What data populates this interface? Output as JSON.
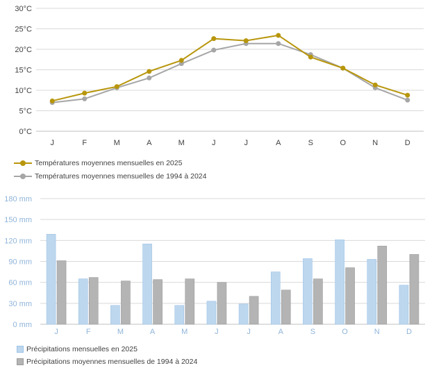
{
  "chart_data": [
    {
      "type": "line",
      "categories": [
        "J",
        "F",
        "M",
        "A",
        "M",
        "J",
        "J",
        "A",
        "S",
        "O",
        "N",
        "D"
      ],
      "ylim": [
        0,
        30
      ],
      "yticks": [
        "0°C",
        "5°C",
        "10°C",
        "15°C",
        "20°C",
        "25°C",
        "30°C"
      ],
      "ytick_values": [
        0,
        5,
        10,
        15,
        20,
        25,
        30
      ],
      "grid": true,
      "series": [
        {
          "name": "Températures moyennes mensuelles en 2025",
          "color": "#b8960c",
          "values": [
            7.4,
            9.3,
            10.9,
            14.6,
            17.3,
            22.6,
            22.1,
            23.4,
            18.1,
            15.4,
            11.3,
            8.8
          ]
        },
        {
          "name": "Températures moyennes mensuelles de 1994 à 2024",
          "color": "#a6a6a6",
          "values": [
            7.0,
            7.9,
            10.6,
            13.0,
            16.5,
            19.8,
            21.4,
            21.4,
            18.7,
            15.4,
            10.6,
            7.6
          ]
        }
      ],
      "legend_position": "bottom-left"
    },
    {
      "type": "bar",
      "categories": [
        "J",
        "F",
        "M",
        "A",
        "M",
        "J",
        "J",
        "A",
        "S",
        "O",
        "N",
        "D"
      ],
      "ylim": [
        0,
        180
      ],
      "yticks": [
        "0 mm",
        "30 mm",
        "60 mm",
        "90 mm",
        "120 mm",
        "150 mm",
        "180 mm"
      ],
      "ytick_values": [
        0,
        30,
        60,
        90,
        120,
        150,
        180
      ],
      "grid": true,
      "series": [
        {
          "name": "Précipitations mensuelles en 2025",
          "color": "#bdd7ee",
          "values": [
            129,
            65,
            27,
            115,
            27,
            33,
            29,
            75,
            94,
            121,
            93,
            56
          ]
        },
        {
          "name": "Précipitations moyennes mensuelles de 1994 à 2024",
          "color": "#b4b4b4",
          "values": [
            91,
            67,
            62,
            64,
            65,
            60,
            40,
            49,
            65,
            81,
            112,
            100
          ]
        }
      ],
      "legend_position": "bottom-left"
    }
  ],
  "colors": {
    "temp_axis_text": "#404040",
    "precip_axis_text": "#8fb4d9",
    "grid": "#d9d9d9"
  }
}
